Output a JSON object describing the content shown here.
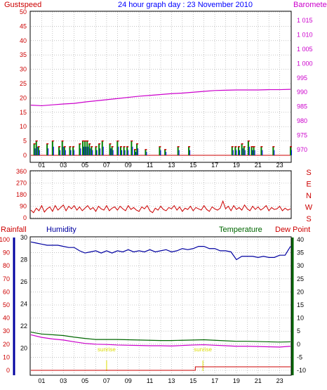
{
  "colors": {
    "gust": "#cc0000",
    "wind_avg": "#0000ff",
    "wind_green": "#008000",
    "barometer": "#cc00cc",
    "winddir": "#cc0000",
    "rain": "#cc0000",
    "humidity": "#0000a0",
    "temperature": "#006600",
    "dewpoint": "#cc00cc",
    "sunrise": "#dddd00",
    "axis_dark": "#000000",
    "grid": "#a0a0a0"
  },
  "header": {
    "left": "Gustspeed",
    "center": "24 hour graph day : 23 November 2010",
    "right": "Barometer"
  },
  "panel3_header": {
    "rainfall": "Rainfall",
    "humidity": "Humidity",
    "temperature": "Temperature",
    "dewpoint": "Dew Point"
  },
  "x_ticks": [
    "01",
    "03",
    "05",
    "07",
    "09",
    "11",
    "13",
    "15",
    "17",
    "19",
    "21",
    "23"
  ],
  "gust_ticks": [
    "0",
    "5",
    "10",
    "15",
    "20",
    "25",
    "30",
    "35",
    "40",
    "45",
    "50"
  ],
  "baro_ticks": [
    "970",
    "975",
    "980",
    "985",
    "990",
    "995",
    "1 000",
    "1 005",
    "1 010",
    "1 015"
  ],
  "dir_ticks": [
    "360",
    "270",
    "180",
    "90",
    "0"
  ],
  "compass": [
    "S",
    "E",
    "N",
    "W",
    "S"
  ],
  "rain_ticks": [
    "0",
    "10",
    "20",
    "30",
    "40",
    "50",
    "60",
    "70",
    "80",
    "90",
    "100"
  ],
  "hum_ticks": [
    "20",
    "22",
    "24",
    "26",
    "28",
    "30"
  ],
  "temp_ticks": [
    "-10",
    "-5",
    "0",
    "5",
    "10",
    "15",
    "20",
    "25",
    "30",
    "35",
    "40"
  ],
  "sunrise": [
    "sunrise",
    "sunrise"
  ],
  "chart_data": [
    {
      "type": "bar",
      "title": "24 hour graph day : 23 November 2010",
      "series": [
        {
          "name": "Gustspeed",
          "axis": "left",
          "ylim": [
            0,
            50
          ],
          "x": [
            0.3,
            0.5,
            0.7,
            1.5,
            2.0,
            2.6,
            2.9,
            3.1,
            3.6,
            3.9,
            4.5,
            4.8,
            5.0,
            5.2,
            5.4,
            5.6,
            6.0,
            6.3,
            6.6,
            7.3,
            7.5,
            8.0,
            8.3,
            8.6,
            8.9,
            9.3,
            9.6,
            9.8,
            10.6,
            11.9,
            12.4,
            13.6,
            14.6,
            18.6,
            18.9,
            19.2,
            19.5,
            19.7,
            20.1,
            20.4,
            20.6,
            21.3,
            22.4,
            24.0
          ],
          "values": [
            4,
            5,
            3,
            4,
            5,
            3,
            5,
            3,
            3,
            3,
            4,
            5,
            5,
            5,
            4,
            3,
            3,
            4,
            5,
            4,
            3,
            5,
            3,
            3,
            3,
            5,
            2,
            4,
            2,
            3,
            2,
            3,
            3,
            3,
            3,
            3,
            4,
            3,
            5,
            3,
            3,
            3,
            3,
            3
          ]
        },
        {
          "name": "Barometer",
          "axis": "right",
          "ylim": [
            968,
            1018
          ],
          "x": [
            0,
            1,
            2,
            3,
            4,
            5,
            6,
            7,
            8,
            9,
            10,
            11,
            12,
            13,
            14,
            15,
            16,
            17,
            18,
            19,
            20,
            21,
            22,
            23,
            24
          ],
          "values": [
            985.5,
            985.3,
            985.6,
            985.9,
            986.1,
            986.6,
            987.0,
            987.4,
            987.8,
            988.2,
            988.6,
            988.9,
            989.2,
            989.5,
            989.7,
            990.0,
            990.3,
            990.6,
            990.7,
            990.8,
            990.8,
            990.8,
            990.9,
            990.9,
            991.0
          ]
        }
      ],
      "x_range": [
        0,
        24
      ]
    },
    {
      "type": "line",
      "title": "",
      "ylim": [
        0,
        360
      ],
      "series": [
        {
          "name": "",
          "x": [
            0,
            0.25,
            0.5,
            0.75,
            1,
            1.25,
            1.5,
            1.75,
            2,
            2.25,
            2.5,
            2.75,
            3,
            3.25,
            3.5,
            3.75,
            4,
            4.25,
            4.5,
            4.75,
            5,
            5.25,
            5.5,
            5.75,
            6,
            6.25,
            6.5,
            6.75,
            7,
            7.25,
            7.5,
            7.75,
            8,
            8.25,
            8.5,
            8.75,
            9,
            9.25,
            9.5,
            9.75,
            10,
            10.25,
            10.5,
            10.75,
            11,
            11.25,
            11.5,
            11.75,
            12,
            12.25,
            12.5,
            12.75,
            13,
            13.25,
            13.5,
            13.75,
            14,
            14.25,
            14.5,
            14.75,
            15,
            15.25,
            15.5,
            15.75,
            16,
            16.25,
            16.5,
            16.75,
            17,
            17.25,
            17.5,
            17.75,
            18,
            18.25,
            18.5,
            18.75,
            19,
            19.25,
            19.5,
            19.75,
            20,
            20.25,
            20.5,
            20.75,
            21,
            21.25,
            21.5,
            21.75,
            22,
            22.25,
            22.5,
            22.75,
            23,
            23.25,
            23.5,
            23.75,
            24
          ],
          "values": [
            60,
            40,
            75,
            55,
            95,
            45,
            70,
            85,
            50,
            95,
            60,
            80,
            100,
            55,
            90,
            70,
            95,
            60,
            85,
            55,
            75,
            95,
            65,
            80,
            50,
            90,
            70,
            60,
            95,
            55,
            75,
            85,
            60,
            90,
            70,
            55,
            95,
            65,
            80,
            60,
            50,
            85,
            70,
            95,
            55,
            40,
            75,
            60,
            90,
            65,
            55,
            80,
            70,
            95,
            60,
            85,
            50,
            75,
            65,
            90,
            55,
            80,
            70,
            60,
            95,
            65,
            50,
            85,
            70,
            60,
            75,
            130,
            70,
            90,
            55,
            95,
            65,
            80,
            60,
            100,
            70,
            55,
            90,
            65,
            85,
            60,
            75,
            95,
            55,
            80,
            65,
            70,
            90,
            55,
            75,
            60,
            70
          ]
        }
      ],
      "x_range": [
        0,
        24
      ]
    },
    {
      "type": "line",
      "title": "",
      "series": [
        {
          "name": "Rainfall",
          "axis": "left",
          "ylim": [
            0,
            100
          ],
          "x": [
            0,
            0.5,
            15.2,
            15.2,
            16,
            24
          ],
          "values": [
            0,
            0,
            0,
            1,
            1,
            1
          ]
        },
        {
          "name": "Humidity",
          "axis": "left2",
          "ylim": [
            18,
            30
          ],
          "x": [
            0,
            0.5,
            1,
            1.5,
            2,
            2.5,
            3,
            3.5,
            4,
            4.5,
            5,
            5.5,
            6,
            6.5,
            7,
            7.5,
            8,
            8.5,
            9,
            9.5,
            10,
            10.5,
            11,
            11.5,
            12,
            12.5,
            13,
            13.5,
            14,
            14.5,
            15,
            15.5,
            16,
            16.5,
            17,
            17.5,
            18,
            18.5,
            19,
            19.5,
            20,
            20.5,
            21,
            21.5,
            22,
            22.5,
            23,
            23.5,
            24
          ],
          "values": [
            29.6,
            29.5,
            29.4,
            29.3,
            29.3,
            29.3,
            29.2,
            29.1,
            29.1,
            28.8,
            28.6,
            28.7,
            28.8,
            28.6,
            28.8,
            28.6,
            28.8,
            28.7,
            28.9,
            28.7,
            28.8,
            28.7,
            28.9,
            28.7,
            28.8,
            28.9,
            28.7,
            28.8,
            29.0,
            28.9,
            29.0,
            29.2,
            29.2,
            29.0,
            29.0,
            28.8,
            28.8,
            28.7,
            28.0,
            28.3,
            28.3,
            28.3,
            28.2,
            28.3,
            28.2,
            28.2,
            28.4,
            28.4,
            29.2
          ]
        },
        {
          "name": "Temperature",
          "axis": "right",
          "ylim": [
            -10,
            40
          ],
          "x": [
            0,
            1,
            2,
            3,
            4,
            5,
            6,
            7,
            8,
            9,
            10,
            11,
            12,
            13,
            14,
            15,
            16,
            17,
            18,
            19,
            20,
            21,
            22,
            23,
            24
          ],
          "values": [
            4.6,
            3.9,
            3.6,
            3.3,
            2.7,
            2.2,
            1.8,
            1.8,
            1.8,
            1.7,
            1.6,
            1.5,
            1.4,
            1.4,
            1.5,
            1.6,
            1.7,
            1.5,
            1.3,
            1.1,
            1.1,
            1.0,
            0.9,
            0.8,
            0.9
          ]
        },
        {
          "name": "Dew Point",
          "axis": "right",
          "ylim": [
            -10,
            40
          ],
          "x": [
            0,
            1,
            2,
            3,
            4,
            5,
            6,
            7,
            8,
            9,
            10,
            11,
            12,
            13,
            14,
            15,
            16,
            17,
            18,
            19,
            20,
            21,
            22,
            23,
            24
          ],
          "values": [
            3.6,
            2.6,
            2.0,
            1.6,
            0.9,
            0.3,
            0.0,
            -0.1,
            -0.3,
            -0.4,
            -0.5,
            -0.6,
            -0.6,
            -0.7,
            -0.5,
            -0.3,
            -0.2,
            -0.4,
            -0.6,
            -0.8,
            -0.8,
            -0.9,
            -1.0,
            -1.1,
            -0.8
          ]
        }
      ],
      "annotations": [
        {
          "x": 7.0,
          "text": "sunrise"
        },
        {
          "x": 15.9,
          "text": "sunrise"
        }
      ],
      "x_range": [
        0,
        24
      ]
    }
  ]
}
